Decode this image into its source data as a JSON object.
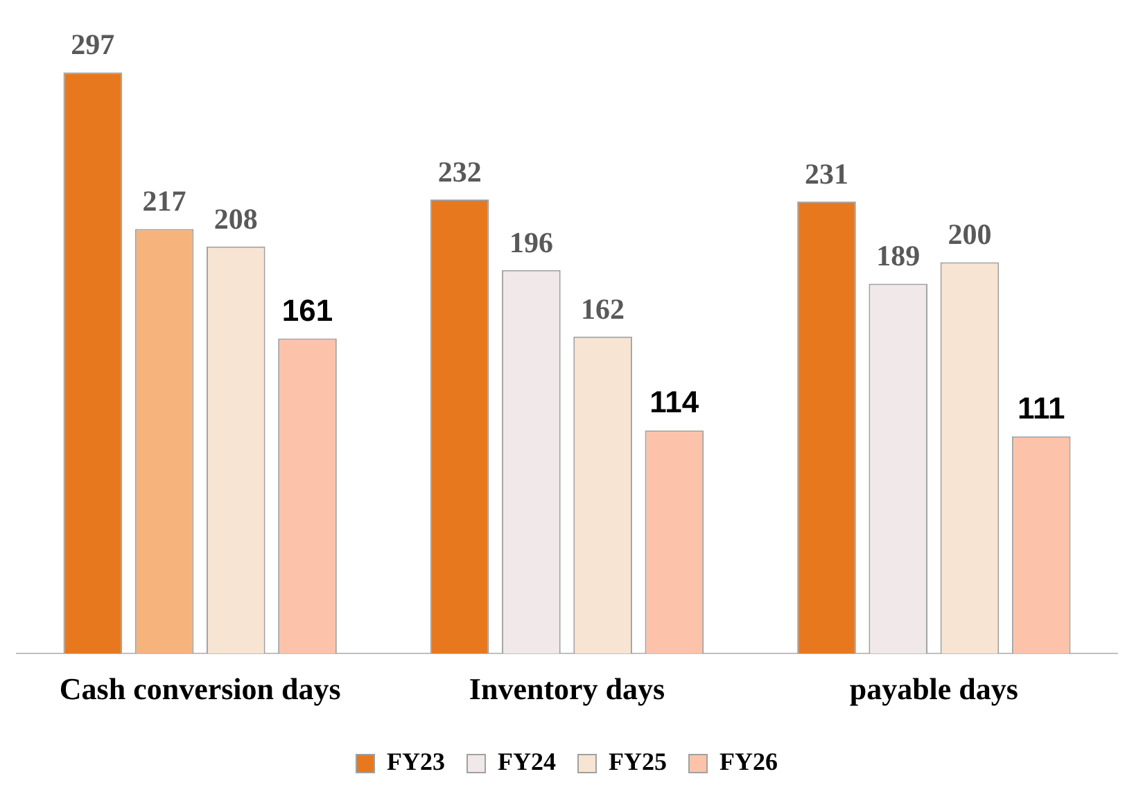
{
  "chart_data": {
    "type": "bar",
    "categories": [
      "Cash conversion days",
      "Inventory days",
      "payable days"
    ],
    "series": [
      {
        "name": "FY23",
        "color": "#e8781e",
        "values": [
          297,
          232,
          231
        ]
      },
      {
        "name": "FY24",
        "colors": [
          "#f6b37c",
          "#f1e9e9",
          "#f1e9e9"
        ],
        "color": "#f1e9e9",
        "values": [
          217,
          196,
          189
        ]
      },
      {
        "name": "FY25",
        "color": "#f7e4d2",
        "values": [
          208,
          162,
          200
        ]
      },
      {
        "name": "FY26",
        "color": "#fcc3aa",
        "values": [
          161,
          114,
          111
        ]
      }
    ],
    "data_labels": true,
    "legend": "bottom",
    "grid": false
  }
}
